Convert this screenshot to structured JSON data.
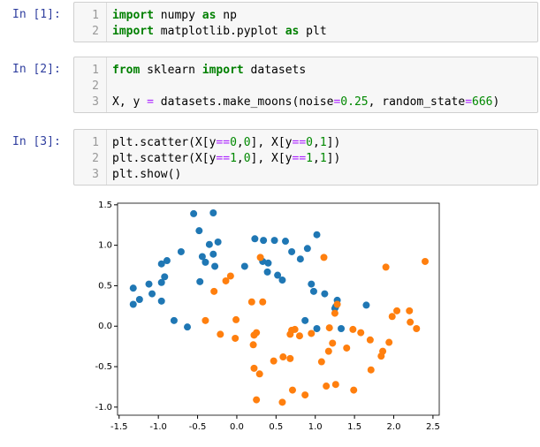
{
  "cells": [
    {
      "prompt": "In [1]:",
      "lines": [
        {
          "number": 1,
          "tokens": [
            {
              "text": "import",
              "color": "#008000",
              "bold": true
            },
            {
              "text": " numpy ",
              "color": "#000000"
            },
            {
              "text": "as",
              "color": "#008000",
              "bold": true
            },
            {
              "text": " np",
              "color": "#000000"
            }
          ]
        },
        {
          "number": 2,
          "tokens": [
            {
              "text": "import",
              "color": "#008000",
              "bold": true
            },
            {
              "text": " matplotlib.pyplot ",
              "color": "#000000"
            },
            {
              "text": "as",
              "color": "#008000",
              "bold": true
            },
            {
              "text": " plt",
              "color": "#000000"
            }
          ]
        }
      ]
    },
    {
      "prompt": "In [2]:",
      "lines": [
        {
          "number": 1,
          "tokens": [
            {
              "text": "from",
              "color": "#008000",
              "bold": true
            },
            {
              "text": " sklearn ",
              "color": "#000000"
            },
            {
              "text": "import",
              "color": "#008000",
              "bold": true
            },
            {
              "text": " datasets",
              "color": "#000000"
            }
          ]
        },
        {
          "number": 2,
          "tokens": []
        },
        {
          "number": 3,
          "tokens": [
            {
              "text": "X, y ",
              "color": "#000000"
            },
            {
              "text": "=",
              "color": "#aa22ff"
            },
            {
              "text": " datasets.make_moons(noise",
              "color": "#000000"
            },
            {
              "text": "=",
              "color": "#aa22ff"
            },
            {
              "text": "0.25",
              "color": "#008800"
            },
            {
              "text": ", random_state",
              "color": "#000000"
            },
            {
              "text": "=",
              "color": "#aa22ff"
            },
            {
              "text": "666",
              "color": "#008800"
            },
            {
              "text": ")",
              "color": "#000000"
            }
          ]
        }
      ]
    },
    {
      "prompt": "In [3]:",
      "lines": [
        {
          "number": 1,
          "tokens": [
            {
              "text": "plt.scatter(X[y",
              "color": "#000000"
            },
            {
              "text": "==",
              "color": "#aa22ff"
            },
            {
              "text": "0",
              "color": "#008800"
            },
            {
              "text": ",",
              "color": "#000000"
            },
            {
              "text": "0",
              "color": "#008800"
            },
            {
              "text": "], X[y",
              "color": "#000000"
            },
            {
              "text": "==",
              "color": "#aa22ff"
            },
            {
              "text": "0",
              "color": "#008800"
            },
            {
              "text": ",",
              "color": "#000000"
            },
            {
              "text": "1",
              "color": "#008800"
            },
            {
              "text": "])",
              "color": "#000000"
            }
          ]
        },
        {
          "number": 2,
          "tokens": [
            {
              "text": "plt.scatter(X[y",
              "color": "#000000"
            },
            {
              "text": "==",
              "color": "#aa22ff"
            },
            {
              "text": "1",
              "color": "#008800"
            },
            {
              "text": ",",
              "color": "#000000"
            },
            {
              "text": "0",
              "color": "#008800"
            },
            {
              "text": "], X[y",
              "color": "#000000"
            },
            {
              "text": "==",
              "color": "#aa22ff"
            },
            {
              "text": "1",
              "color": "#008800"
            },
            {
              "text": ",",
              "color": "#000000"
            },
            {
              "text": "1",
              "color": "#008800"
            },
            {
              "text": "])",
              "color": "#000000"
            }
          ]
        },
        {
          "number": 3,
          "tokens": [
            {
              "text": "plt.show()",
              "color": "#000000"
            }
          ]
        }
      ]
    }
  ],
  "chart_data": {
    "type": "scatter",
    "xlim": [
      -1.52,
      2.58
    ],
    "ylim": [
      -1.1,
      1.52
    ],
    "xticks": [
      {
        "value": -1.5,
        "label": "-1.5"
      },
      {
        "value": -1,
        "label": "-1.0"
      },
      {
        "value": -0.5,
        "label": "-0.5"
      },
      {
        "value": 0,
        "label": "0.0"
      },
      {
        "value": 0.5,
        "label": "0.5"
      },
      {
        "value": 1,
        "label": "1.0"
      },
      {
        "value": 1.5,
        "label": "1.5"
      },
      {
        "value": 2,
        "label": "2.0"
      },
      {
        "value": 2.5,
        "label": "2.5"
      }
    ],
    "yticks": [
      {
        "value": -1,
        "label": "-1.0"
      },
      {
        "value": -0.5,
        "label": "-0.5"
      },
      {
        "value": 0,
        "label": "0.0"
      },
      {
        "value": 0.5,
        "label": "0.5"
      },
      {
        "value": 1,
        "label": "1.0"
      },
      {
        "value": 1.5,
        "label": "1.5"
      }
    ],
    "series": [
      {
        "color": "#1f77b4",
        "x": [
          -0.55,
          -0.3,
          -0.48,
          -0.35,
          -0.24,
          -0.3,
          -0.44,
          -0.28,
          -0.89,
          -0.71,
          -0.96,
          -0.92,
          -1.12,
          -0.96,
          -1.08,
          -1.32,
          -1.32,
          -0.96,
          -0.8,
          -0.63,
          -0.47,
          -0.4,
          0.1,
          0.23,
          0.34,
          0.48,
          0.62,
          0.33,
          0.4,
          0.39,
          0.52,
          0.58,
          0.7,
          0.81,
          1.02,
          0.9,
          0.95,
          0.98,
          1.12,
          1.28,
          1.26,
          0.87,
          1.02,
          1.33,
          1.65,
          1.25,
          -1.24
        ],
        "y": [
          1.39,
          1.4,
          1.18,
          1.01,
          1.04,
          0.89,
          0.86,
          0.74,
          0.81,
          0.92,
          0.77,
          0.61,
          0.52,
          0.54,
          0.4,
          0.47,
          0.27,
          0.31,
          0.07,
          -0.01,
          0.55,
          0.79,
          0.74,
          1.08,
          1.06,
          1.06,
          1.05,
          0.8,
          0.78,
          0.67,
          0.63,
          0.57,
          0.92,
          0.83,
          1.13,
          0.96,
          0.52,
          0.43,
          0.4,
          0.32,
          0.24,
          0.07,
          -0.03,
          -0.03,
          0.26,
          0.22,
          0.33
        ]
      },
      {
        "color": "#ff7f0e",
        "x": [
          1.9,
          2.4,
          1.11,
          0.3,
          -0.29,
          -0.08,
          -0.14,
          0.19,
          0.33,
          -0.4,
          -0.01,
          -0.21,
          -0.02,
          0.22,
          0.25,
          0.21,
          0.22,
          0.29,
          0.47,
          0.59,
          0.68,
          0.7,
          0.68,
          0.74,
          0.8,
          0.95,
          0.71,
          0.87,
          0.25,
          0.58,
          1.08,
          1.17,
          1.18,
          1.28,
          1.25,
          1.48,
          1.58,
          1.4,
          1.22,
          1.26,
          1.14,
          1.49,
          1.71,
          1.7,
          1.86,
          1.84,
          1.94,
          1.98,
          2.04,
          2.2,
          2.21,
          2.29
        ],
        "y": [
          0.73,
          0.8,
          0.85,
          0.85,
          0.43,
          0.62,
          0.56,
          0.3,
          0.3,
          0.07,
          0.08,
          -0.1,
          -0.15,
          -0.11,
          -0.08,
          -0.23,
          -0.52,
          -0.59,
          -0.43,
          -0.38,
          -0.4,
          -0.05,
          -0.1,
          -0.04,
          -0.12,
          -0.09,
          -0.79,
          -0.85,
          -0.91,
          -0.94,
          -0.44,
          -0.31,
          -0.02,
          0.27,
          0.16,
          -0.04,
          -0.08,
          -0.27,
          -0.21,
          -0.72,
          -0.74,
          -0.79,
          -0.54,
          -0.17,
          -0.31,
          -0.37,
          -0.2,
          0.12,
          0.19,
          0.19,
          0.05,
          -0.03
        ]
      }
    ]
  }
}
